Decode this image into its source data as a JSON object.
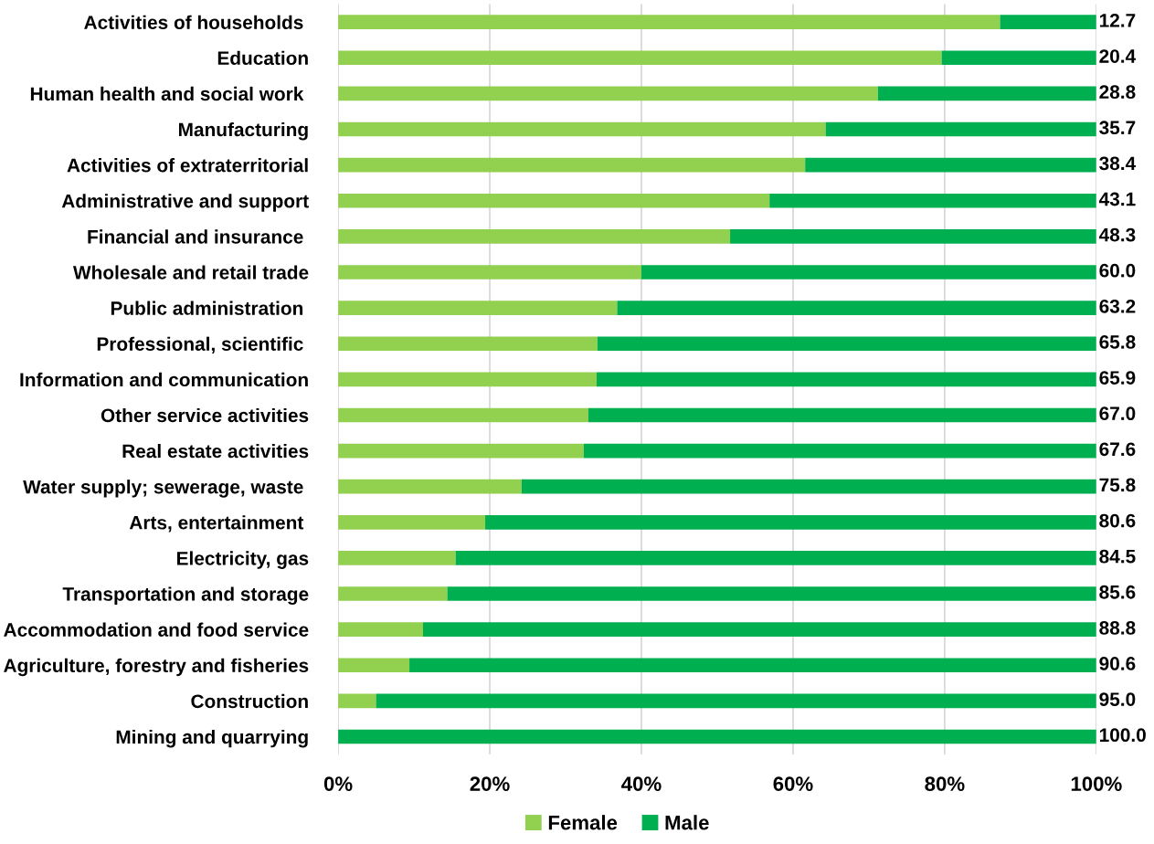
{
  "chart_data": {
    "type": "bar",
    "orientation": "horizontal",
    "stacked": true,
    "categories": [
      "Activities of households ",
      "Education",
      "Human health and social work ",
      "Manufacturing",
      "Activities of extraterritorial",
      "Administrative and support",
      "Financial and insurance ",
      "Wholesale and retail trade",
      "Public administration ",
      "Professional, scientific ",
      "Information and communication",
      "Other service activities",
      "Real estate activities",
      "Water supply; sewerage, waste ",
      "Arts, entertainment ",
      "Electricity, gas",
      "Transportation and storage",
      "Accommodation and food service",
      "Agriculture, forestry and fisheries",
      "Construction",
      "Mining and quarrying"
    ],
    "series": [
      {
        "name": "Female",
        "color": "#92d050",
        "values": [
          87.3,
          79.6,
          71.2,
          64.3,
          61.6,
          56.9,
          51.7,
          40.0,
          36.8,
          34.2,
          34.1,
          33.0,
          32.4,
          24.2,
          19.4,
          15.5,
          14.4,
          11.2,
          9.4,
          5.0,
          0.0
        ]
      },
      {
        "name": "Male",
        "color": "#00b050",
        "values": [
          12.7,
          20.4,
          28.8,
          35.7,
          38.4,
          43.1,
          48.3,
          60.0,
          63.2,
          65.8,
          65.9,
          67.0,
          67.6,
          75.8,
          80.6,
          84.5,
          85.6,
          88.8,
          90.6,
          95.0,
          100.0
        ],
        "value_labels": [
          "12.7",
          "20.4",
          "28.8",
          "35.7",
          "38.4",
          "43.1",
          "48.3",
          "60.0",
          "63.2",
          "65.8",
          "65.9",
          "67.0",
          "67.6",
          "75.8",
          "80.6",
          "84.5",
          "85.6",
          "88.8",
          "90.6",
          "95.0",
          "100.0"
        ]
      }
    ],
    "xlim": [
      0,
      100
    ],
    "xticks": [
      {
        "value": 0,
        "label": "0%"
      },
      {
        "value": 20,
        "label": "20%"
      },
      {
        "value": 40,
        "label": "40%"
      },
      {
        "value": 60,
        "label": "60%"
      },
      {
        "value": 80,
        "label": "80%"
      },
      {
        "value": 100,
        "label": "100%"
      }
    ],
    "grid": "x",
    "legend": "bottom"
  }
}
